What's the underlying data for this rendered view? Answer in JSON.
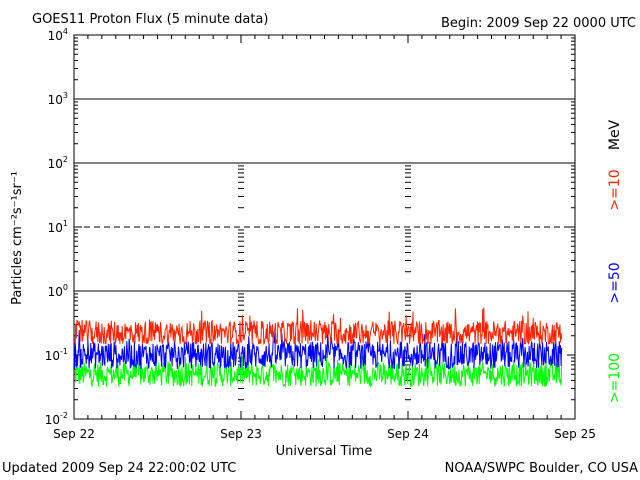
{
  "header": {
    "title": "GOES11 Proton Flux (5 minute data)",
    "begin": "Begin: 2009 Sep 22 0000 UTC"
  },
  "footer": {
    "updated": "Updated 2009 Sep 24 22:00:02 UTC",
    "credit": "NOAA/SWPC Boulder, CO USA"
  },
  "chart_data": {
    "type": "line",
    "title": "GOES11 Proton Flux (5 minute data)",
    "xlabel": "Universal Time",
    "ylabel": "Particles cm⁻²s⁻¹sr⁻¹",
    "yscale": "log",
    "ylim": [
      0.01,
      10000
    ],
    "xlim": [
      0,
      3
    ],
    "x_unit": "days since 2009 Sep 22 0000 UTC",
    "data_end_x": 2.92,
    "x_tick_labels": [
      "Sep 22",
      "Sep 23",
      "Sep 24",
      "Sep 25"
    ],
    "y_tick_labels": [
      {
        "base": "10",
        "exp": "-2",
        "value": 0.01
      },
      {
        "base": "10",
        "exp": "-1",
        "value": 0.1
      },
      {
        "base": "10",
        "exp": "0",
        "value": 1
      },
      {
        "base": "10",
        "exp": "1",
        "value": 10
      },
      {
        "base": "10",
        "exp": "2",
        "value": 100
      },
      {
        "base": "10",
        "exp": "3",
        "value": 1000
      },
      {
        "base": "10",
        "exp": "4",
        "value": 10000
      }
    ],
    "reference_lines": [
      {
        "value": 1000,
        "style": "solid"
      },
      {
        "value": 100,
        "style": "solid"
      },
      {
        "value": 10,
        "style": "dashed"
      },
      {
        "value": 1,
        "style": "solid"
      }
    ],
    "energy_unit": "MeV",
    "series": [
      {
        "name": ">=10",
        "color": "#ff2200",
        "typical": 0.22,
        "low": 0.15,
        "high": 0.55
      },
      {
        "name": ">=50",
        "color": "#0000ff",
        "typical": 0.1,
        "low": 0.06,
        "high": 0.25
      },
      {
        "name": ">=100",
        "color": "#00ff00",
        "typical": 0.05,
        "low": 0.028,
        "high": 0.1
      }
    ]
  }
}
